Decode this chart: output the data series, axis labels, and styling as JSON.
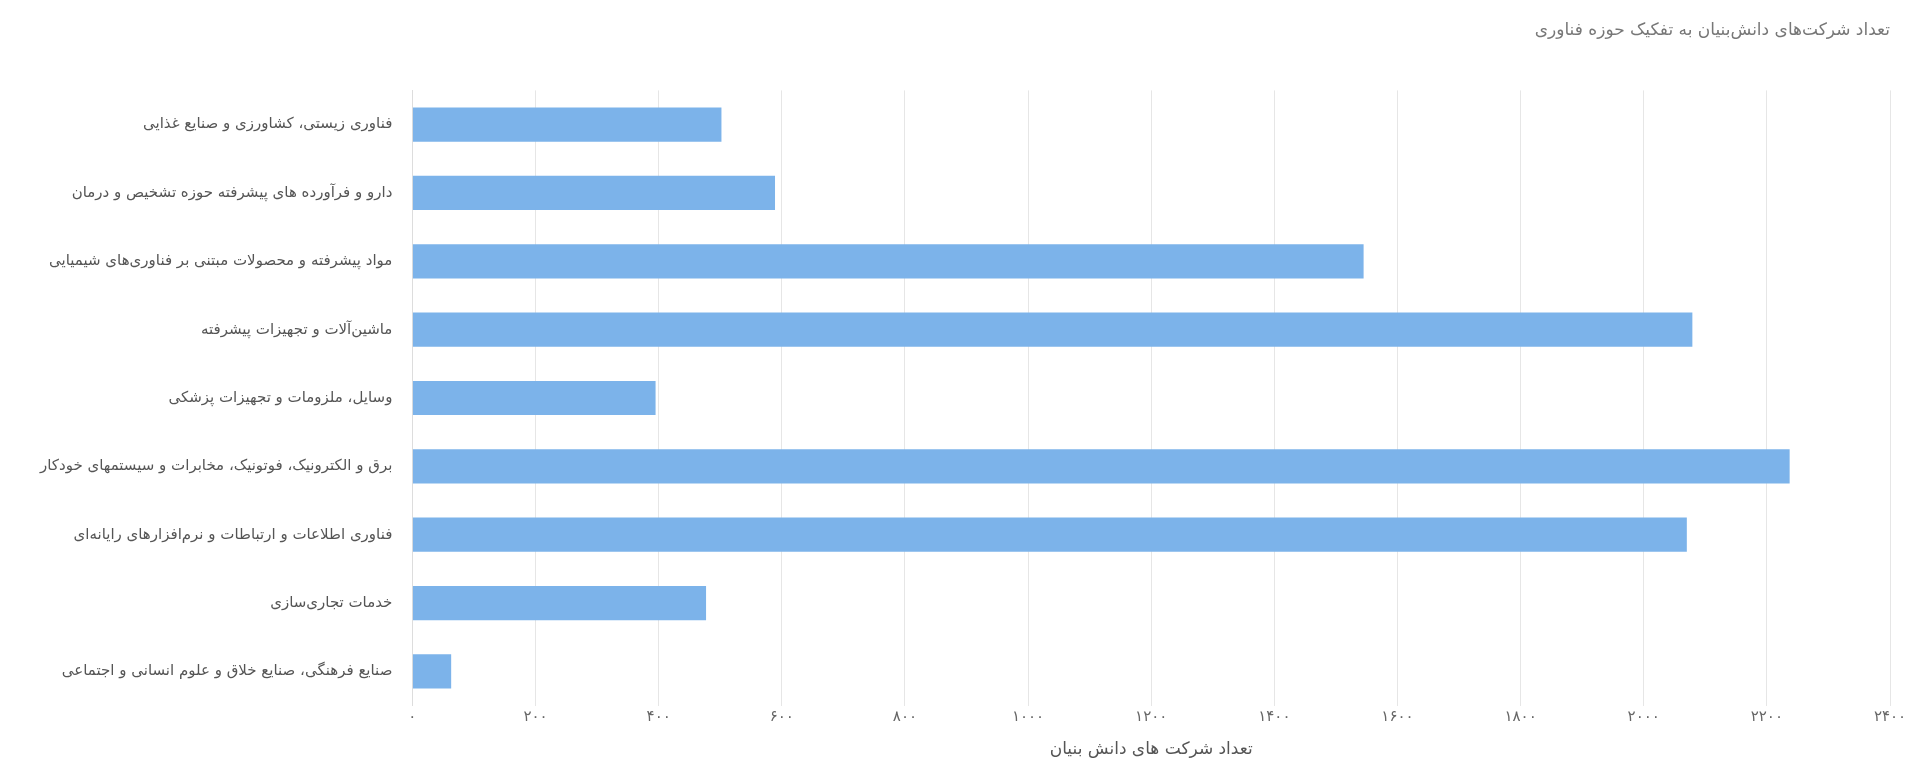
{
  "chart_data": {
    "type": "bar",
    "orientation": "horizontal",
    "title": "تعداد شرکت‌های دانش‌بنیان به تفکیک حوزه فناوری",
    "xlabel": "تعداد شرکت های دانش بنیان",
    "categories": [
      "فناوری زیستی، کشاورزی و صنایع غذایی",
      "دارو و فرآورده های پیشرفته حوزه تشخیص و درمان",
      "مواد پیشرفته و محصولات مبتنی بر فناوری‌های شیمیایی",
      "ماشین‌آلات و تجهیزات پیشرفته",
      "وسایل، ملزومات و تجهیزات پزشکی",
      "برق و الکترونیک، فوتونیک، مخابرات و سیستمهای خودکار",
      "فناوری اطلاعات و ارتباطات و نرم‌افزارهای رایانه‌ای",
      "خدمات تجاری‌سازی",
      "صنایع فرهنگی، صنایع خلاق و علوم انسانی و اجتماعی"
    ],
    "values": [
      502,
      589,
      1545,
      2079,
      395,
      2237,
      2070,
      477,
      63
    ],
    "color": "#7cb3ea",
    "xlim": [
      0,
      2400
    ],
    "xticks": [
      {
        "value": 0,
        "label": "۰"
      },
      {
        "value": 200,
        "label": "۲۰۰"
      },
      {
        "value": 400,
        "label": "۴۰۰"
      },
      {
        "value": 600,
        "label": "۶۰۰"
      },
      {
        "value": 800,
        "label": "۸۰۰"
      },
      {
        "value": 1000,
        "label": "۱۰۰۰"
      },
      {
        "value": 1200,
        "label": "۱۲۰۰"
      },
      {
        "value": 1400,
        "label": "۱۴۰۰"
      },
      {
        "value": 1600,
        "label": "۱۶۰۰"
      },
      {
        "value": 1800,
        "label": "۱۸۰۰"
      },
      {
        "value": 2000,
        "label": "۲۰۰۰"
      },
      {
        "value": 2200,
        "label": "۲۲۰۰"
      },
      {
        "value": 2400,
        "label": "۲۴۰۰"
      }
    ],
    "grid": "x",
    "legend": false
  }
}
